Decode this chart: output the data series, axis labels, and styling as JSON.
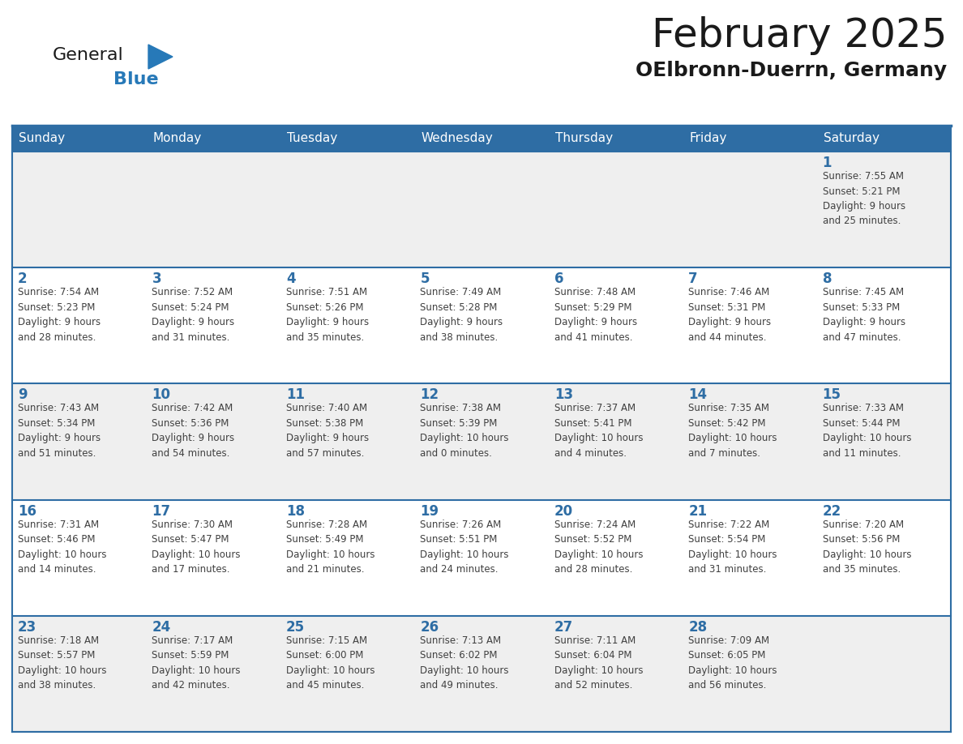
{
  "title": "February 2025",
  "subtitle": "OElbronn-Duerrn, Germany",
  "days_of_week": [
    "Sunday",
    "Monday",
    "Tuesday",
    "Wednesday",
    "Thursday",
    "Friday",
    "Saturday"
  ],
  "header_bg": "#2E6DA4",
  "header_text": "#FFFFFF",
  "cell_bg_odd": "#EFEFEF",
  "cell_bg_even": "#FFFFFF",
  "border_color": "#2E6DA4",
  "day_number_color": "#2E6DA4",
  "cell_text_color": "#404040",
  "title_color": "#1a1a1a",
  "subtitle_color": "#1a1a1a",
  "logo_general_color": "#1a1a1a",
  "logo_blue_color": "#2779B8",
  "calendar_data": [
    [
      {
        "day": null,
        "info": null
      },
      {
        "day": null,
        "info": null
      },
      {
        "day": null,
        "info": null
      },
      {
        "day": null,
        "info": null
      },
      {
        "day": null,
        "info": null
      },
      {
        "day": null,
        "info": null
      },
      {
        "day": 1,
        "info": "Sunrise: 7:55 AM\nSunset: 5:21 PM\nDaylight: 9 hours\nand 25 minutes."
      }
    ],
    [
      {
        "day": 2,
        "info": "Sunrise: 7:54 AM\nSunset: 5:23 PM\nDaylight: 9 hours\nand 28 minutes."
      },
      {
        "day": 3,
        "info": "Sunrise: 7:52 AM\nSunset: 5:24 PM\nDaylight: 9 hours\nand 31 minutes."
      },
      {
        "day": 4,
        "info": "Sunrise: 7:51 AM\nSunset: 5:26 PM\nDaylight: 9 hours\nand 35 minutes."
      },
      {
        "day": 5,
        "info": "Sunrise: 7:49 AM\nSunset: 5:28 PM\nDaylight: 9 hours\nand 38 minutes."
      },
      {
        "day": 6,
        "info": "Sunrise: 7:48 AM\nSunset: 5:29 PM\nDaylight: 9 hours\nand 41 minutes."
      },
      {
        "day": 7,
        "info": "Sunrise: 7:46 AM\nSunset: 5:31 PM\nDaylight: 9 hours\nand 44 minutes."
      },
      {
        "day": 8,
        "info": "Sunrise: 7:45 AM\nSunset: 5:33 PM\nDaylight: 9 hours\nand 47 minutes."
      }
    ],
    [
      {
        "day": 9,
        "info": "Sunrise: 7:43 AM\nSunset: 5:34 PM\nDaylight: 9 hours\nand 51 minutes."
      },
      {
        "day": 10,
        "info": "Sunrise: 7:42 AM\nSunset: 5:36 PM\nDaylight: 9 hours\nand 54 minutes."
      },
      {
        "day": 11,
        "info": "Sunrise: 7:40 AM\nSunset: 5:38 PM\nDaylight: 9 hours\nand 57 minutes."
      },
      {
        "day": 12,
        "info": "Sunrise: 7:38 AM\nSunset: 5:39 PM\nDaylight: 10 hours\nand 0 minutes."
      },
      {
        "day": 13,
        "info": "Sunrise: 7:37 AM\nSunset: 5:41 PM\nDaylight: 10 hours\nand 4 minutes."
      },
      {
        "day": 14,
        "info": "Sunrise: 7:35 AM\nSunset: 5:42 PM\nDaylight: 10 hours\nand 7 minutes."
      },
      {
        "day": 15,
        "info": "Sunrise: 7:33 AM\nSunset: 5:44 PM\nDaylight: 10 hours\nand 11 minutes."
      }
    ],
    [
      {
        "day": 16,
        "info": "Sunrise: 7:31 AM\nSunset: 5:46 PM\nDaylight: 10 hours\nand 14 minutes."
      },
      {
        "day": 17,
        "info": "Sunrise: 7:30 AM\nSunset: 5:47 PM\nDaylight: 10 hours\nand 17 minutes."
      },
      {
        "day": 18,
        "info": "Sunrise: 7:28 AM\nSunset: 5:49 PM\nDaylight: 10 hours\nand 21 minutes."
      },
      {
        "day": 19,
        "info": "Sunrise: 7:26 AM\nSunset: 5:51 PM\nDaylight: 10 hours\nand 24 minutes."
      },
      {
        "day": 20,
        "info": "Sunrise: 7:24 AM\nSunset: 5:52 PM\nDaylight: 10 hours\nand 28 minutes."
      },
      {
        "day": 21,
        "info": "Sunrise: 7:22 AM\nSunset: 5:54 PM\nDaylight: 10 hours\nand 31 minutes."
      },
      {
        "day": 22,
        "info": "Sunrise: 7:20 AM\nSunset: 5:56 PM\nDaylight: 10 hours\nand 35 minutes."
      }
    ],
    [
      {
        "day": 23,
        "info": "Sunrise: 7:18 AM\nSunset: 5:57 PM\nDaylight: 10 hours\nand 38 minutes."
      },
      {
        "day": 24,
        "info": "Sunrise: 7:17 AM\nSunset: 5:59 PM\nDaylight: 10 hours\nand 42 minutes."
      },
      {
        "day": 25,
        "info": "Sunrise: 7:15 AM\nSunset: 6:00 PM\nDaylight: 10 hours\nand 45 minutes."
      },
      {
        "day": 26,
        "info": "Sunrise: 7:13 AM\nSunset: 6:02 PM\nDaylight: 10 hours\nand 49 minutes."
      },
      {
        "day": 27,
        "info": "Sunrise: 7:11 AM\nSunset: 6:04 PM\nDaylight: 10 hours\nand 52 minutes."
      },
      {
        "day": 28,
        "info": "Sunrise: 7:09 AM\nSunset: 6:05 PM\nDaylight: 10 hours\nand 56 minutes."
      },
      {
        "day": null,
        "info": null
      }
    ]
  ],
  "figsize": [
    11.88,
    9.18
  ],
  "dpi": 100
}
